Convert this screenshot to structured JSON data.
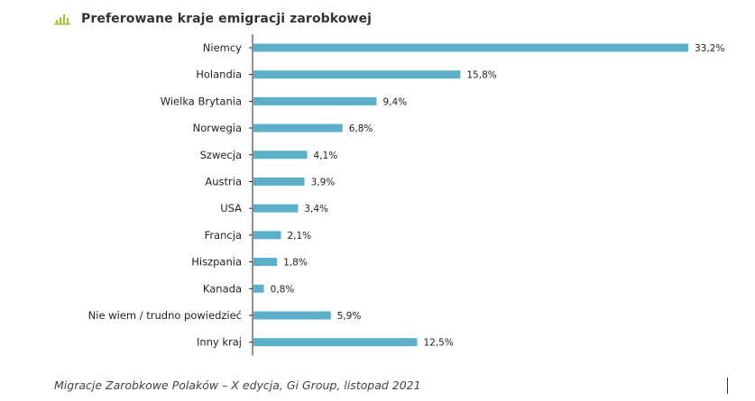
{
  "title": "Preferowane kraje emigracji zarobkowej",
  "icon": "bar-chart-icon",
  "accent_color": "#9bc531",
  "bar_color": "#5bafc8",
  "footer": "Migracje Zarobkowe Polaków – X edycja, Gi Group, listopad 2021",
  "chart_data": {
    "type": "bar",
    "orientation": "horizontal",
    "title": "Preferowane kraje emigracji zarobkowej",
    "categories": [
      "Niemcy",
      "Holandia",
      "Wielka Brytania",
      "Norwegia",
      "Szwecja",
      "Austria",
      "USA",
      "Francja",
      "Hiszpania",
      "Kanada",
      "Nie wiem / trudno powiedzieć",
      "Inny kraj"
    ],
    "values": [
      33.2,
      15.8,
      9.4,
      6.8,
      4.1,
      3.9,
      3.4,
      2.1,
      1.8,
      0.8,
      5.9,
      12.5
    ],
    "value_labels": [
      "33,2%",
      "15,8%",
      "9,4%",
      "6,8%",
      "4,1%",
      "3,9%",
      "3,4%",
      "2,1%",
      "1,8%",
      "0,8%",
      "5,9%",
      "12,5%"
    ],
    "unit": "%",
    "xlim": [
      0,
      33.2
    ],
    "grid": false,
    "legend": "none"
  }
}
